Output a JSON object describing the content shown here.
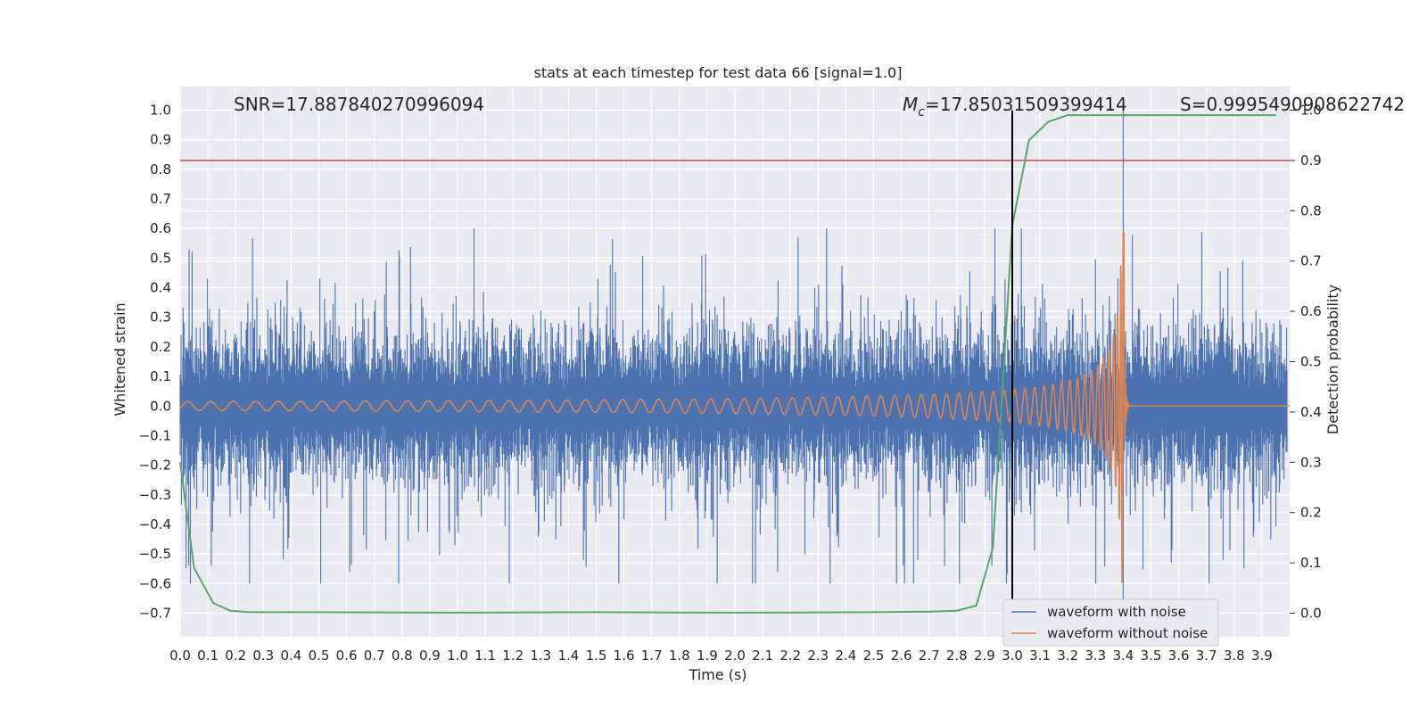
{
  "chart_data": {
    "type": "line",
    "title": "stats at each timestep for test data 66 [signal=1.0]",
    "xlabel": "Time (s)",
    "ylabel_left": "Whitened strain",
    "ylabel_right": "Detection probability",
    "xlim": [
      0.0,
      4.0
    ],
    "ylim_left": [
      -0.78,
      1.08
    ],
    "ylim_right": [
      -0.047,
      1.047
    ],
    "x_ticks": [
      0.0,
      0.1,
      0.2,
      0.3,
      0.4,
      0.5,
      0.6,
      0.7,
      0.8,
      0.9,
      1.0,
      1.1,
      1.2,
      1.3,
      1.4,
      1.5,
      1.6,
      1.7,
      1.8,
      1.9,
      2.0,
      2.1,
      2.2,
      2.3,
      2.4,
      2.5,
      2.6,
      2.7,
      2.8,
      2.9,
      3.0,
      3.1,
      3.2,
      3.3,
      3.4,
      3.5,
      3.6,
      3.7,
      3.8,
      3.9
    ],
    "x_tick_labels": [
      "0.0",
      "0.1",
      "0.2",
      "0.3",
      "0.4",
      "0.5",
      "0.6",
      "0.7",
      "0.8",
      "0.9",
      "1.0",
      "1.1",
      "1.2",
      "1.3",
      "1.4",
      "1.5",
      "1.6",
      "1.7",
      "1.8",
      "1.9",
      "2.0",
      "2.1",
      "2.2",
      "2.3",
      "2.4",
      "2.5",
      "2.6",
      "2.7",
      "2.8",
      "2.9",
      "3.0",
      "3.1",
      "3.2",
      "3.3",
      "3.4",
      "3.5",
      "3.6",
      "3.7",
      "3.8",
      "3.9"
    ],
    "y_left_ticks": [
      -0.7,
      -0.6,
      -0.5,
      -0.4,
      -0.3,
      -0.2,
      -0.1,
      0.0,
      0.1,
      0.2,
      0.3,
      0.4,
      0.5,
      0.6,
      0.7,
      0.8,
      0.9,
      1.0
    ],
    "y_left_tick_labels": [
      "−0.7",
      "−0.6",
      "−0.5",
      "−0.4",
      "−0.3",
      "−0.2",
      "−0.1",
      "0.0",
      "0.1",
      "0.2",
      "0.3",
      "0.4",
      "0.5",
      "0.6",
      "0.7",
      "0.8",
      "0.9",
      "1.0"
    ],
    "y_right_ticks": [
      0.0,
      0.1,
      0.2,
      0.3,
      0.4,
      0.5,
      0.6,
      0.7,
      0.8,
      0.9,
      1.0
    ],
    "y_right_tick_labels": [
      "0.0",
      "0.1",
      "0.2",
      "0.3",
      "0.4",
      "0.5",
      "0.6",
      "0.7",
      "0.8",
      "0.9",
      "1.0"
    ],
    "annotations": {
      "snr": "SNR=17.887840270996094",
      "mc_symbol": "M",
      "mc_subscript": "c",
      "mc_value": "=17.85031509399414",
      "s": "S=0.9995490908622742"
    },
    "threshold_right": 0.9,
    "vertical_line_x": 3.0,
    "series": [
      {
        "name": "waveform with noise",
        "axis": "left",
        "color": "#4c72b0",
        "style": "dense-noise",
        "amplitude_typical": 0.3,
        "amplitude_max": 0.6,
        "merger_peak": [
          3.4,
          1.0
        ]
      },
      {
        "name": "waveform without noise",
        "axis": "left",
        "color": "#dd8452",
        "style": "chirp",
        "start_amplitude": 0.015,
        "merger_time": 3.4,
        "merger_amplitude": 0.6,
        "ringdown_end": 3.42
      },
      {
        "axis": "right",
        "color": "#55a868",
        "style": "line",
        "x": [
          0.0,
          0.05,
          0.12,
          0.18,
          0.25,
          0.5,
          1.0,
          1.5,
          2.0,
          2.5,
          2.7,
          2.8,
          2.87,
          2.93,
          3.0,
          3.06,
          3.13,
          3.2,
          3.5,
          3.95
        ],
        "y": [
          0.3,
          0.09,
          0.02,
          0.005,
          0.002,
          0.002,
          0.001,
          0.002,
          0.001,
          0.002,
          0.003,
          0.005,
          0.015,
          0.13,
          0.77,
          0.94,
          0.977,
          0.99,
          0.99,
          0.99
        ]
      }
    ],
    "grid": true,
    "legend_position": "bottom-right",
    "colors": {
      "background": "#eaeaf2",
      "grid": "#ffffff",
      "threshold": "#c44e52",
      "vertical_line": "#000000"
    }
  }
}
